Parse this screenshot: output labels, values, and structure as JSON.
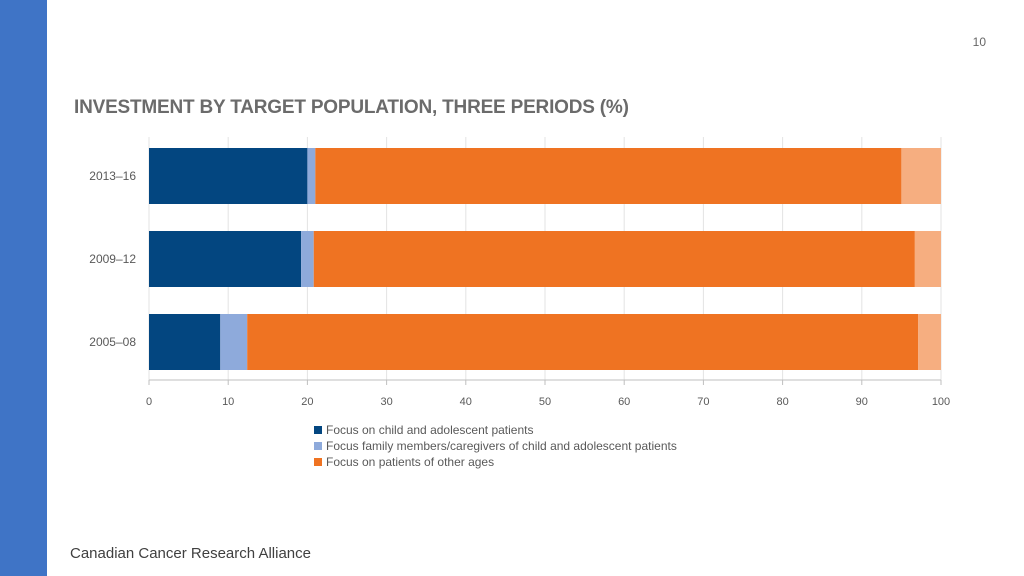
{
  "page_number": "10",
  "title": "INVESTMENT BY TARGET POPULATION, THREE PERIODS (%)",
  "footer": "Canadian Cancer Research Alliance",
  "colors": {
    "sidebar": "#3f74c6",
    "child": "#034680",
    "family": "#8eaadb",
    "other": "#ef7322",
    "remainder": "#f6ae80"
  },
  "chart_data": {
    "type": "bar",
    "orientation": "horizontal",
    "stacked": true,
    "title": "INVESTMENT BY TARGET POPULATION, THREE PERIODS (%)",
    "categories": [
      "2013–16",
      "2009–12",
      "2005–08"
    ],
    "series": [
      {
        "name": "Focus on child and adolescent patients",
        "values": [
          20,
          19.2,
          9
        ]
      },
      {
        "name": "Focus family members/caregivers of child and adolescent patients",
        "values": [
          1,
          1.6,
          3.4
        ]
      },
      {
        "name": "Focus on patients of other ages",
        "values": [
          74,
          75.9,
          84.7
        ]
      },
      {
        "name": "",
        "values": [
          5,
          3.3,
          2.9
        ]
      }
    ],
    "xlim": [
      0,
      100
    ],
    "xticks": [
      0,
      10,
      20,
      30,
      40,
      50,
      60,
      70,
      80,
      90,
      100
    ],
    "xlabel": "",
    "ylabel": "",
    "grid": true,
    "legend": [
      "Focus on child and adolescent patients",
      "Focus family members/caregivers of child and adolescent patients",
      "Focus on patients of other ages"
    ],
    "legend_position": "bottom"
  }
}
